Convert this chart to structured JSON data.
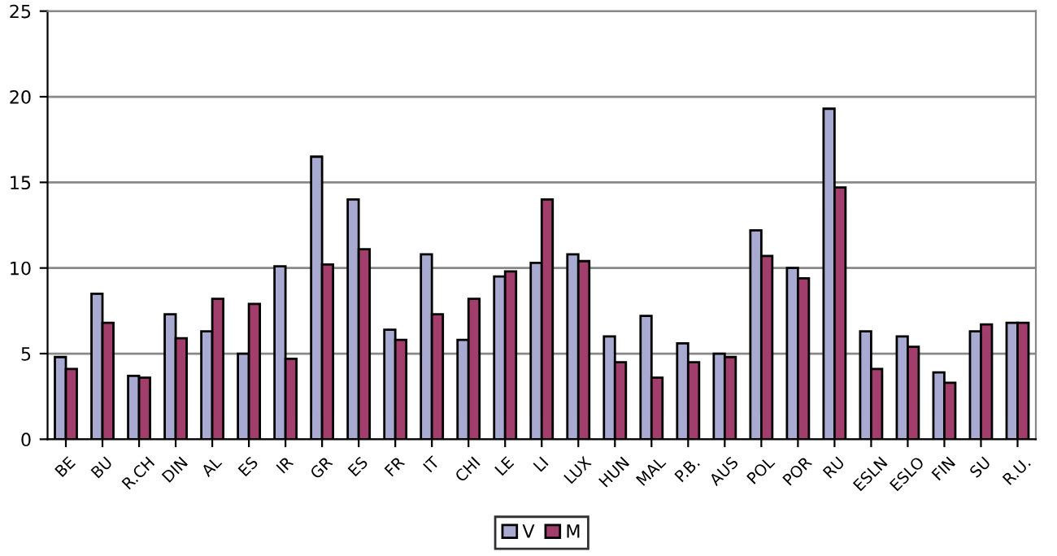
{
  "chart_data": {
    "type": "bar",
    "categories": [
      "BE",
      "BU",
      "R.CH",
      "DIN",
      "AL",
      "ES",
      "IR",
      "GR",
      "ES",
      "FR",
      "IT",
      "CHI",
      "LE",
      "LI",
      "LUX",
      "HUN",
      "MAL",
      "P.B.",
      "AUS",
      "POL",
      "POR",
      "RU",
      "ESLN",
      "ESLO",
      "FIN",
      "SU",
      "R.U."
    ],
    "series": [
      {
        "name": "V",
        "color": "#a9aad2",
        "values": [
          4.8,
          8.5,
          3.7,
          7.3,
          6.3,
          5.0,
          10.1,
          16.5,
          14.0,
          6.4,
          10.8,
          5.8,
          9.5,
          10.3,
          10.8,
          6.0,
          7.2,
          5.6,
          5.0,
          12.2,
          10.0,
          19.3,
          6.3,
          6.0,
          3.9,
          6.3,
          6.8
        ]
      },
      {
        "name": "M",
        "color": "#a23e6c",
        "values": [
          4.1,
          6.8,
          3.6,
          5.9,
          8.2,
          7.9,
          4.7,
          10.2,
          11.1,
          5.8,
          7.3,
          8.2,
          9.8,
          14.0,
          10.4,
          4.5,
          3.6,
          4.5,
          4.8,
          10.7,
          9.4,
          14.7,
          4.1,
          5.4,
          3.3,
          6.7,
          6.8
        ]
      }
    ],
    "ylim": [
      0,
      25
    ],
    "yticks": [
      0,
      5,
      10,
      15,
      20,
      25
    ],
    "grid": "y",
    "legend": "bottom"
  }
}
